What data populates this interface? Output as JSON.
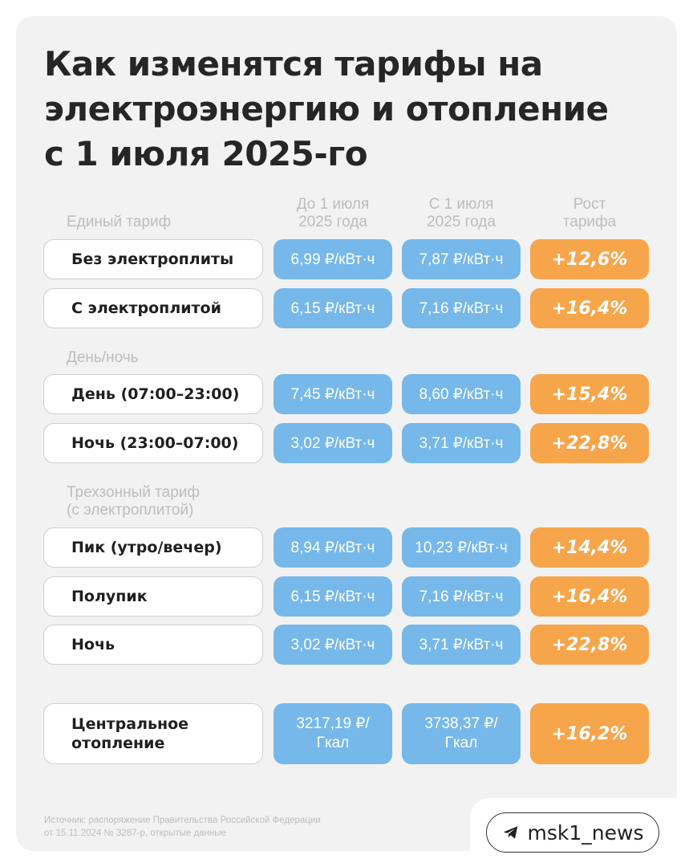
{
  "title": [
    "Как изменятся тарифы на",
    "электроэнергию и отопление",
    "с 1 июля 2025-го"
  ],
  "columns": {
    "before": [
      "До 1 июля",
      "2025 года"
    ],
    "after": [
      "С 1 июля",
      "2025 года"
    ],
    "growth": [
      "Рост",
      "тарифа"
    ]
  },
  "sections": {
    "single": "Единый тариф",
    "daynight": "День/ночь",
    "three_zone": [
      "Трехзонный тариф",
      "(с электроплитой)"
    ]
  },
  "rows": [
    {
      "name": "Без электроплиты",
      "before": "6,99 ₽/кВт·ч",
      "after": "7,87 ₽/кВт·ч",
      "growth": "+12,6%"
    },
    {
      "name": "С электроплитой",
      "before": "6,15 ₽/кВт·ч",
      "after": "7,16 ₽/кВт·ч",
      "growth": "+16,4%"
    },
    {
      "name": "День (07:00–23:00)",
      "before": "7,45 ₽/кВт·ч",
      "after": "8,60 ₽/кВт·ч",
      "growth": "+15,4%"
    },
    {
      "name": "Ночь (23:00–07:00)",
      "before": "3,02 ₽/кВт·ч",
      "after": "3,71 ₽/кВт·ч",
      "growth": "+22,8%"
    },
    {
      "name": "Пик (утро/вечер)",
      "before": "8,94 ₽/кВт·ч",
      "after": "10,23 ₽/кВт·ч",
      "growth": "+14,4%"
    },
    {
      "name": "Полупик",
      "before": "6,15 ₽/кВт·ч",
      "after": "7,16 ₽/кВт·ч",
      "growth": "+16,4%"
    },
    {
      "name": "Ночь",
      "before": "3,02 ₽/кВт·ч",
      "after": "3,71 ₽/кВт·ч",
      "growth": "+22,8%"
    }
  ],
  "heating": {
    "name": [
      "Центральное",
      "отопление"
    ],
    "before": [
      "3217,19 ₽/",
      "Гкал"
    ],
    "after": [
      "3738,37 ₽/",
      "Гкал"
    ],
    "growth": "+16,2%"
  },
  "source": [
    "Источник: распоряжение Правительства Российской Федерации",
    "от 15.11.2024 № 3287-р, открытые данные"
  ],
  "badge": {
    "icon": "telegram-icon",
    "label": "msk1_news"
  },
  "colors": {
    "blue": "#76b8ea",
    "orange": "#f7a54b",
    "card": "#f2f2f2"
  }
}
